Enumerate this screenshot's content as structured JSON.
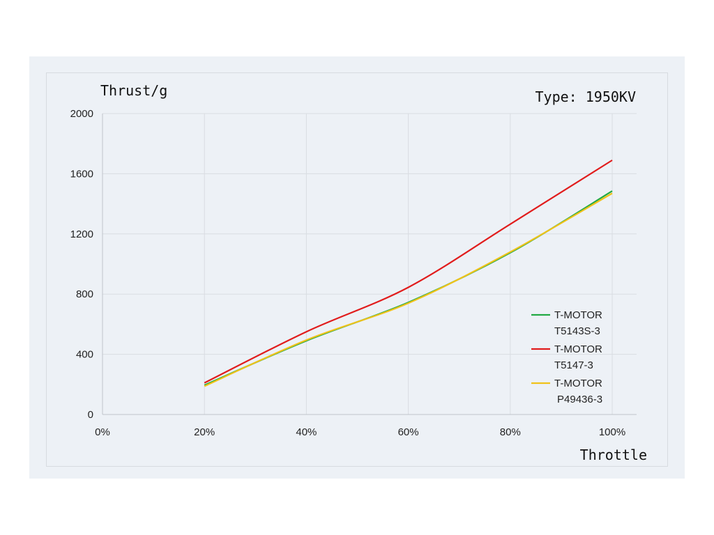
{
  "chart_data": {
    "type": "line",
    "title": "Type: 1950KV",
    "ylabel": "Thrust/g",
    "xlabel": "Throttle",
    "x": [
      20,
      40,
      60,
      80,
      100
    ],
    "x_tick_values": [
      0,
      20,
      40,
      60,
      80,
      100
    ],
    "x_tick_labels": [
      "0%",
      "20%",
      "40%",
      "60%",
      "80%",
      "100%"
    ],
    "xlim": [
      0,
      100
    ],
    "y_tick_values": [
      0,
      400,
      800,
      1200,
      1600,
      2000
    ],
    "y_tick_labels": [
      "0",
      "400",
      "800",
      "1200",
      "1600",
      "2000"
    ],
    "ylim": [
      0,
      2000
    ],
    "grid": true,
    "legend_position": "right",
    "series": [
      {
        "name": "T-MOTOR T5143S-3",
        "legend_lines": [
          "T-MOTOR",
          "T5143S-3"
        ],
        "color": "#22aa44",
        "values": [
          195,
          490,
          745,
          1075,
          1485
        ]
      },
      {
        "name": "T-MOTOR T5147-3",
        "legend_lines": [
          "T-MOTOR",
          "T5147-3"
        ],
        "color": "#e11c1c",
        "values": [
          210,
          550,
          845,
          1265,
          1690
        ]
      },
      {
        "name": "T-MOTOR P49436-3",
        "legend_lines": [
          "T-MOTOR",
          "P49436-3"
        ],
        "color": "#f0c21a",
        "values": [
          188,
          495,
          740,
          1080,
          1470
        ]
      }
    ]
  }
}
